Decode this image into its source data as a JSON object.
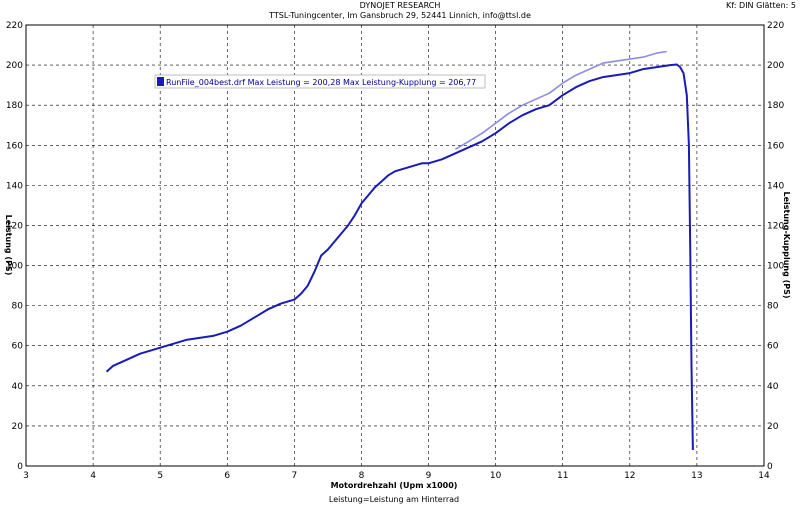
{
  "header": {
    "title": "DYNOJET RESEARCH",
    "subtitle": "TTSL-Tuningcenter, Im Gansbruch 29, 52441 Linnich, info@ttsl.de",
    "settings": "Kf: DIN  Glätten: 5"
  },
  "chart_data": {
    "type": "line",
    "xlabel": "Motordrehzahl (Upm x1000)",
    "x_sublabel": "Leistung=Leistung am Hinterrad",
    "ylabel_left": "Leistung (PS)",
    "ylabel_right": "Leistung-Kupplung (PS)",
    "xlim": [
      3,
      14
    ],
    "ylim": [
      0,
      220
    ],
    "x_ticks": [
      "3",
      "4",
      "5",
      "6",
      "7",
      "8",
      "9",
      "10",
      "11",
      "12",
      "13",
      "14"
    ],
    "y_ticks": [
      "0",
      "20",
      "40",
      "60",
      "80",
      "100",
      "120",
      "140",
      "160",
      "180",
      "200",
      "220"
    ],
    "grid": true,
    "legend": {
      "position": "top-left",
      "text": "RunFile_004best.drf Max Leistung = 200,28 Max Leistung-Kupplung = 206,77"
    },
    "series": [
      {
        "name": "Leistung",
        "color": "#1a1ab8",
        "x": [
          4.2,
          4.3,
          4.5,
          4.7,
          4.9,
          5.0,
          5.2,
          5.4,
          5.6,
          5.8,
          6.0,
          6.2,
          6.4,
          6.6,
          6.8,
          7.0,
          7.1,
          7.2,
          7.3,
          7.4,
          7.5,
          7.6,
          7.7,
          7.8,
          7.9,
          8.0,
          8.1,
          8.2,
          8.3,
          8.4,
          8.5,
          8.6,
          8.7,
          8.8,
          8.9,
          9.0,
          9.2,
          9.4,
          9.6,
          9.8,
          10.0,
          10.2,
          10.4,
          10.6,
          10.8,
          11.0,
          11.2,
          11.4,
          11.6,
          11.8,
          12.0,
          12.2,
          12.4,
          12.6,
          12.7,
          12.75,
          12.8,
          12.85,
          12.88,
          12.9,
          12.92,
          12.94
        ],
        "y": [
          47,
          50,
          53,
          56,
          58,
          59,
          61,
          63,
          64,
          65,
          67,
          70,
          74,
          78,
          81,
          83,
          86,
          90,
          97,
          105,
          108,
          112,
          116,
          120,
          125,
          131,
          135,
          139,
          142,
          145,
          147,
          148,
          149,
          150,
          151,
          151,
          153,
          156,
          159,
          162,
          166,
          171,
          175,
          178,
          180,
          185,
          189,
          192,
          194,
          195,
          196,
          198,
          199,
          200,
          200.28,
          199,
          196,
          185,
          160,
          110,
          50,
          8
        ]
      },
      {
        "name": "Leistung-Kupplung",
        "color": "#8c8ce6",
        "x": [
          9.4,
          9.6,
          9.8,
          10.0,
          10.2,
          10.4,
          10.6,
          10.8,
          11.0,
          11.2,
          11.4,
          11.6,
          11.8,
          12.0,
          12.2,
          12.4,
          12.55
        ],
        "y": [
          158,
          162,
          166,
          171,
          176,
          180,
          183,
          186,
          191,
          195,
          198,
          201,
          202,
          203,
          204,
          206,
          206.77
        ]
      }
    ]
  }
}
